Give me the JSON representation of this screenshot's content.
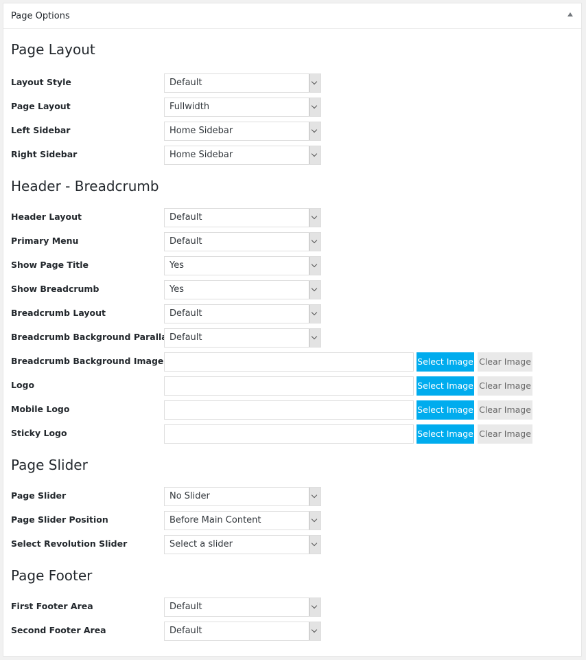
{
  "panel": {
    "title": "Page Options",
    "toggle_icon": "triangle-up-icon"
  },
  "colors": {
    "select_image_button": "#00acee",
    "clear_image_button": "#e9e9e9"
  },
  "sections": [
    {
      "title": "Page Layout",
      "fields": [
        {
          "label": "Layout Style",
          "type": "select",
          "value": "Default"
        },
        {
          "label": "Page Layout",
          "type": "select",
          "value": "Fullwidth"
        },
        {
          "label": "Left Sidebar",
          "type": "select",
          "value": "Home Sidebar"
        },
        {
          "label": "Right Sidebar",
          "type": "select",
          "value": "Home Sidebar"
        }
      ]
    },
    {
      "title": "Header - Breadcrumb",
      "fields": [
        {
          "label": "Header Layout",
          "type": "select",
          "value": "Default"
        },
        {
          "label": "Primary Menu",
          "type": "select",
          "value": "Default"
        },
        {
          "label": "Show Page Title",
          "type": "select",
          "value": "Yes"
        },
        {
          "label": "Show Breadcrumb",
          "type": "select",
          "value": "Yes"
        },
        {
          "label": "Breadcrumb Layout",
          "type": "select",
          "value": "Default"
        },
        {
          "label": "Breadcrumb Background Parallax",
          "type": "select",
          "value": "Default"
        },
        {
          "label": "Breadcrumb Background Image",
          "type": "image",
          "value": "",
          "select_label": "Select Image",
          "clear_label": "Clear Image"
        },
        {
          "label": "Logo",
          "type": "image",
          "value": "",
          "select_label": "Select Image",
          "clear_label": "Clear Image"
        },
        {
          "label": "Mobile Logo",
          "type": "image",
          "value": "",
          "select_label": "Select Image",
          "clear_label": "Clear Image"
        },
        {
          "label": "Sticky Logo",
          "type": "image",
          "value": "",
          "select_label": "Select Image",
          "clear_label": "Clear Image"
        }
      ]
    },
    {
      "title": "Page Slider",
      "fields": [
        {
          "label": "Page Slider",
          "type": "select",
          "value": "No Slider"
        },
        {
          "label": "Page Slider Position",
          "type": "select",
          "value": "Before Main Content"
        },
        {
          "label": "Select Revolution Slider",
          "type": "select",
          "value": "Select a slider"
        }
      ]
    },
    {
      "title": "Page Footer",
      "fields": [
        {
          "label": "First Footer Area",
          "type": "select",
          "value": "Default"
        },
        {
          "label": "Second Footer Area",
          "type": "select",
          "value": "Default"
        }
      ]
    }
  ]
}
